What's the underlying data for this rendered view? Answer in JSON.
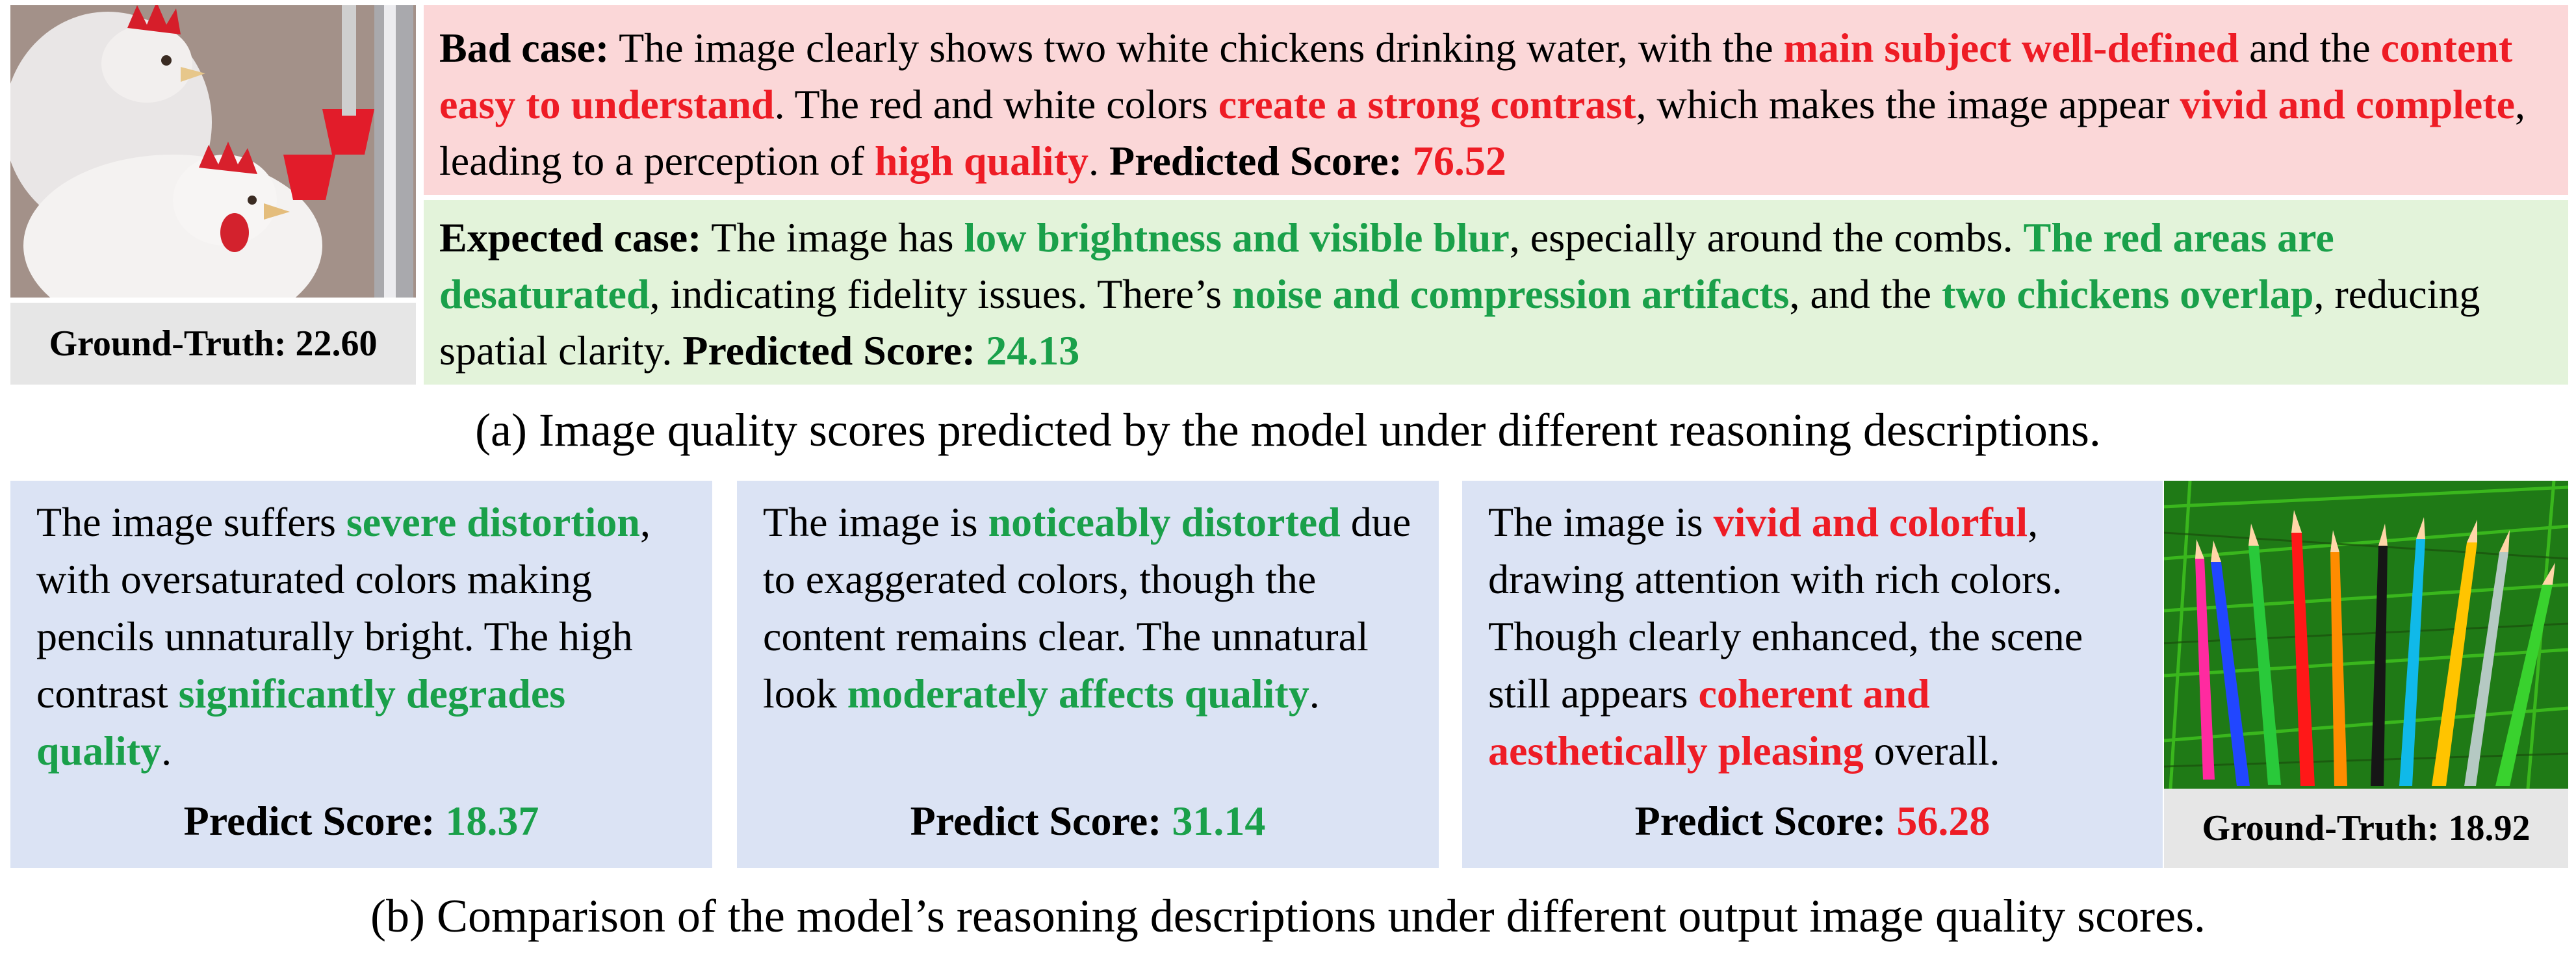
{
  "panel_a": {
    "gt_label": "Ground-Truth: 22.60",
    "bad": {
      "label": "Bad case:",
      "t1": " The image clearly shows two white chickens drinking water, with the ",
      "h1": "main subject well-defined",
      "t2": " and the ",
      "h2": "content easy to understand",
      "t3": ". The red and white colors ",
      "h3": "create a strong contrast",
      "t4": ", which makes the image appear ",
      "h4": "vivid and complete",
      "t5": ", leading to a perception of ",
      "h5": "high quality",
      "t6": ". ",
      "score_label": "Predicted Score: ",
      "score": "76.52"
    },
    "expected": {
      "label": "Expected case:",
      "t1": " The image has ",
      "h1": "low brightness and visible blur",
      "t2": ", especially around the combs. ",
      "h2": "The red areas are desaturated",
      "t3": ", indicating fidelity issues. There’s ",
      "h3": "noise and compression artifacts",
      "t4": ", and the ",
      "h4": "two chickens overlap",
      "t5": ", reducing spatial clarity. ",
      "score_label": "Predicted Score: ",
      "score": "24.13"
    },
    "caption": "(a) Image quality scores predicted by the model under different reasoning descriptions."
  },
  "panel_b": {
    "card1": {
      "t1": "The image suffers ",
      "h1": "severe distortion",
      "t2": ", with oversaturated colors making pencils unnaturally bright. The high contrast ",
      "h2": "significantly degrades quality",
      "t3": ".",
      "score_label": "Predict Score: ",
      "score": "18.37"
    },
    "card2": {
      "t1": "The image is ",
      "h1": "noticeably distorted",
      "t2": " due to exaggerated colors, though the content remains clear. The unnatural look ",
      "h2": "moderately affects quality",
      "t3": ".",
      "score_label": "Predict Score: ",
      "score": "31.14"
    },
    "card3": {
      "t1": "The image is ",
      "h1": "vivid and colorful",
      "t2": ", drawing attention with rich colors. Though clearly enhanced, the scene still appears ",
      "h2": "coherent and aesthetically pleasing",
      "t3": " overall.",
      "score_label": "Predict Score: ",
      "score": "56.28"
    },
    "gt_label": "Ground-Truth: 18.92",
    "caption": "(b) Comparison of the model’s reasoning descriptions under different output image quality scores."
  },
  "colors": {
    "good": "#1aa04a",
    "bad": "#ee1c25",
    "bad_bg": "#fbd7d8",
    "expected_bg": "#e3f3da",
    "card_bg": "#dbe3f4",
    "gt_bg": "#e6e6e6"
  }
}
